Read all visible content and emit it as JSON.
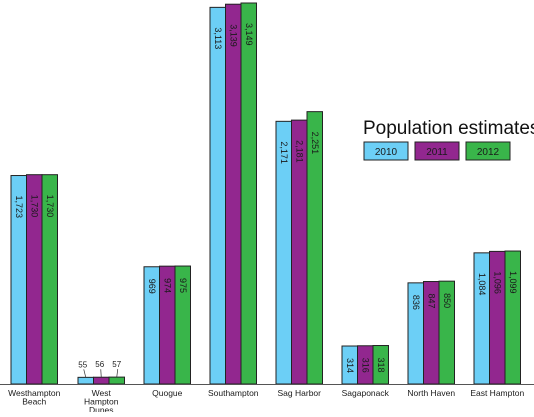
{
  "chart_data": {
    "type": "bar",
    "title": "Population estimates",
    "categories": [
      [
        "Westhampton",
        "Beach"
      ],
      [
        "West",
        "Hampton",
        "Dunes"
      ],
      [
        "Quogue"
      ],
      [
        "Southampton"
      ],
      [
        "Sag Harbor"
      ],
      [
        "Sagaponack"
      ],
      [
        "North Haven"
      ],
      [
        "East Hampton"
      ]
    ],
    "series": [
      {
        "name": "2010",
        "color": "#6ccff6",
        "values": [
          1723,
          55,
          969,
          3113,
          2171,
          314,
          836,
          1084
        ],
        "labels": [
          "1,723",
          "55",
          "969",
          "3,113",
          "2,171",
          "314",
          "836",
          "1,084"
        ]
      },
      {
        "name": "2011",
        "color": "#92278f",
        "values": [
          1730,
          56,
          974,
          3139,
          2181,
          316,
          847,
          1096
        ],
        "labels": [
          "1,730",
          "56",
          "974",
          "3,139",
          "2,181",
          "316",
          "847",
          "1,096"
        ]
      },
      {
        "name": "2012",
        "color": "#39b54a",
        "values": [
          1730,
          57,
          975,
          3149,
          2251,
          318,
          850,
          1099
        ],
        "labels": [
          "1,730",
          "57",
          "975",
          "3,149",
          "2,251",
          "318",
          "850",
          "1,099"
        ]
      }
    ],
    "ylim": [
      0,
      3149
    ],
    "legend_position": "right",
    "grid": false
  }
}
